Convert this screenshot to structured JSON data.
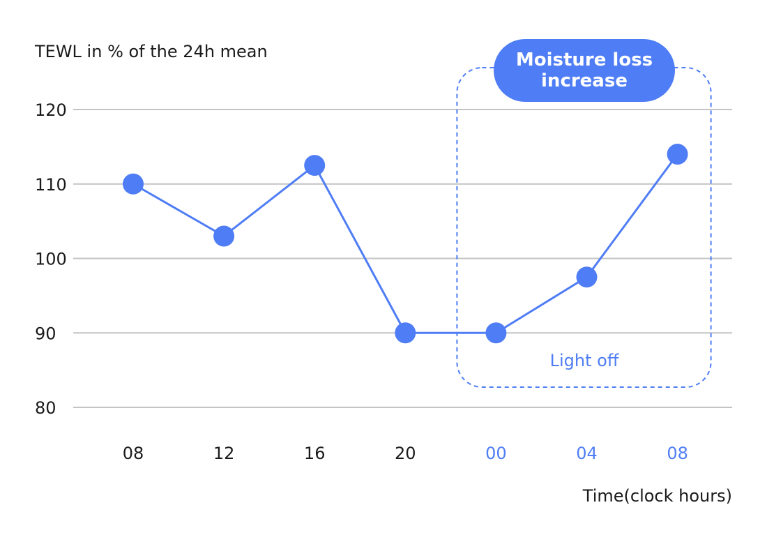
{
  "chart_data": {
    "type": "line",
    "ylabel": "TEWL in % of the 24h mean",
    "xlabel": "Time(clock hours)",
    "categories": [
      "08",
      "12",
      "16",
      "20",
      "00",
      "04",
      "08"
    ],
    "values": [
      110,
      103,
      112.5,
      90,
      90,
      97.5,
      114
    ],
    "ylim": [
      80,
      120
    ],
    "yticks": [
      120,
      110,
      100,
      90,
      80
    ],
    "grid": true,
    "highlight": {
      "start_index": 4,
      "end_index": 6,
      "callout": "Moisture loss increase",
      "label": "Light off"
    },
    "colors": {
      "series": "#4f7df5",
      "grid": "#c4c4c4",
      "tick_text": "#1a1a1a",
      "highlight_tick_text": "#4f7df5"
    }
  }
}
